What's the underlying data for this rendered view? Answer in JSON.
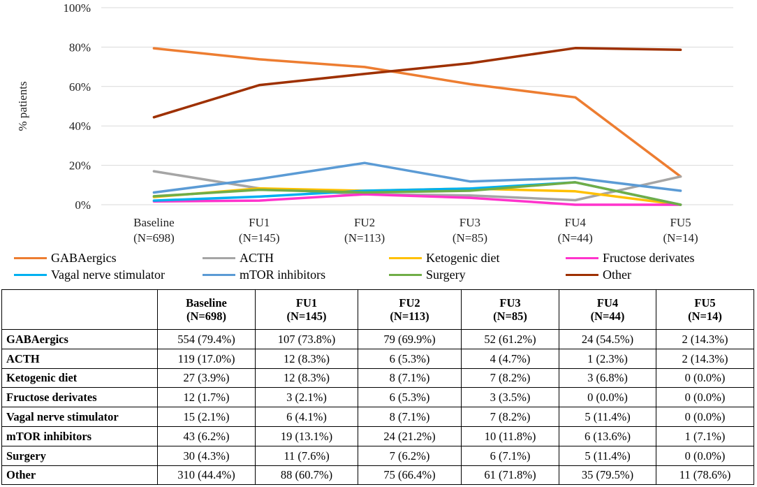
{
  "chart_data": {
    "type": "line",
    "ylabel": "% patients",
    "ylim": [
      0,
      100
    ],
    "yticks": [
      "0%",
      "20%",
      "40%",
      "60%",
      "80%",
      "100%"
    ],
    "categories": [
      {
        "line1": "Baseline",
        "line2": "(N=698)"
      },
      {
        "line1": "FU1",
        "line2": "(N=145)"
      },
      {
        "line1": "FU2",
        "line2": "(N=113)"
      },
      {
        "line1": "FU3",
        "line2": "(N=85)"
      },
      {
        "line1": "FU4",
        "line2": "(N=44)"
      },
      {
        "line1": "FU5",
        "line2": "(N=14)"
      }
    ],
    "series": [
      {
        "name": "GABAergics",
        "color": "#ed7d31",
        "values": [
          79.4,
          73.8,
          69.9,
          61.2,
          54.5,
          14.3
        ]
      },
      {
        "name": "ACTH",
        "color": "#a5a5a5",
        "values": [
          17.0,
          8.3,
          5.3,
          4.7,
          2.3,
          14.3
        ]
      },
      {
        "name": "Ketogenic diet",
        "color": "#ffc000",
        "values": [
          3.9,
          8.3,
          7.1,
          8.2,
          6.8,
          0.0
        ]
      },
      {
        "name": "Fructose derivates",
        "color": "#ff33cc",
        "values": [
          1.7,
          2.1,
          5.3,
          3.5,
          0.0,
          0.0
        ]
      },
      {
        "name": "Vagal nerve stimulator",
        "color": "#00b0f0",
        "values": [
          2.1,
          4.1,
          7.1,
          8.2,
          11.4,
          0.0
        ]
      },
      {
        "name": "mTOR inhibitors",
        "color": "#5b9bd5",
        "values": [
          6.2,
          13.1,
          21.2,
          11.8,
          13.6,
          7.1
        ]
      },
      {
        "name": "Surgery",
        "color": "#70ad47",
        "values": [
          4.3,
          7.6,
          6.2,
          7.1,
          11.4,
          0.0
        ]
      },
      {
        "name": "Other",
        "color": "#9e3000",
        "values": [
          44.4,
          60.7,
          66.4,
          71.8,
          79.5,
          78.6
        ]
      }
    ]
  },
  "table": {
    "headers": [
      {
        "line1": "",
        "line2": ""
      },
      {
        "line1": "Baseline",
        "line2": "(N=698)"
      },
      {
        "line1": "FU1",
        "line2": "(N=145)"
      },
      {
        "line1": "FU2",
        "line2": "(N=113)"
      },
      {
        "line1": "FU3",
        "line2": "(N=85)"
      },
      {
        "line1": "FU4",
        "line2": "(N=44)"
      },
      {
        "line1": "FU5",
        "line2": "(N=14)"
      }
    ],
    "rows": [
      {
        "label": "GABAergics",
        "cells": [
          "554 (79.4%)",
          "107 (73.8%)",
          "79 (69.9%)",
          "52 (61.2%)",
          "24 (54.5%)",
          "2 (14.3%)"
        ]
      },
      {
        "label": "ACTH",
        "cells": [
          "119 (17.0%)",
          "12 (8.3%)",
          "6 (5.3%)",
          "4 (4.7%)",
          "1 (2.3%)",
          "2 (14.3%)"
        ]
      },
      {
        "label": "Ketogenic diet",
        "cells": [
          "27 (3.9%)",
          "12 (8.3%)",
          "8 (7.1%)",
          "7 (8.2%)",
          "3 (6.8%)",
          "0 (0.0%)"
        ]
      },
      {
        "label": "Fructose derivates",
        "cells": [
          "12 (1.7%)",
          "3 (2.1%)",
          "6 (5.3%)",
          "3 (3.5%)",
          "0 (0.0%)",
          "0 (0.0%)"
        ]
      },
      {
        "label": "Vagal nerve stimulator",
        "cells": [
          "15 (2.1%)",
          "6 (4.1%)",
          "8 (7.1%)",
          "7 (8.2%)",
          "5 (11.4%)",
          "0 (0.0%)"
        ]
      },
      {
        "label": "mTOR inhibitors",
        "cells": [
          "43 (6.2%)",
          "19 (13.1%)",
          "24 (21.2%)",
          "10 (11.8%)",
          "6 (13.6%)",
          "1 (7.1%)"
        ]
      },
      {
        "label": "Surgery",
        "cells": [
          "30 (4.3%)",
          "11 (7.6%)",
          "7 (6.2%)",
          "6 (7.1%)",
          "5 (11.4%)",
          "0 (0.0%)"
        ]
      },
      {
        "label": "Other",
        "cells": [
          "310 (44.4%)",
          "88 (60.7%)",
          "75 (66.4%)",
          "61 (71.8%)",
          "35 (79.5%)",
          "11 (78.6%)"
        ]
      }
    ]
  }
}
